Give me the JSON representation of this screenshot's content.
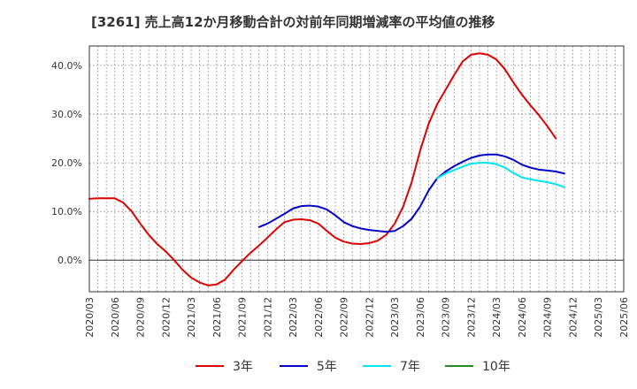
{
  "chart_data": {
    "type": "line",
    "title": "[3261]  売上高12か月移動合計の対前年同期増減率の平均値の推移",
    "xlabel": "",
    "ylabel": "",
    "x": [
      "2020/03",
      "2020/06",
      "2020/09",
      "2020/12",
      "2021/03",
      "2021/06",
      "2021/09",
      "2021/12",
      "2022/03",
      "2022/06",
      "2022/09",
      "2022/12",
      "2023/03",
      "2023/06",
      "2023/09",
      "2023/12",
      "2024/03",
      "2024/06",
      "2024/09",
      "2024/12",
      "2025/03",
      "2025/06"
    ],
    "ylim": [
      -6.5,
      44.0
    ],
    "yticks": [
      {
        "value": 0,
        "label": "0.0%"
      },
      {
        "value": 10,
        "label": "10.0%"
      },
      {
        "value": 20,
        "label": "20.0%"
      },
      {
        "value": 30,
        "label": "30.0%"
      },
      {
        "value": 40,
        "label": "40.0%"
      }
    ],
    "grid": true,
    "legend_position": "bottom",
    "series": [
      {
        "name": "3年",
        "color": "#dd0000",
        "points": [
          [
            "2020/03",
            12.6
          ],
          [
            "2020/04",
            12.7
          ],
          [
            "2020/05",
            12.7
          ],
          [
            "2020/06",
            12.7
          ],
          [
            "2020/07",
            11.8
          ],
          [
            "2020/08",
            10.0
          ],
          [
            "2020/09",
            7.5
          ],
          [
            "2020/10",
            5.2
          ],
          [
            "2020/11",
            3.3
          ],
          [
            "2020/12",
            1.8
          ],
          [
            "2021/01",
            0.0
          ],
          [
            "2021/02",
            -2.0
          ],
          [
            "2021/03",
            -3.6
          ],
          [
            "2021/04",
            -4.6
          ],
          [
            "2021/05",
            -5.2
          ],
          [
            "2021/06",
            -5.0
          ],
          [
            "2021/07",
            -4.0
          ],
          [
            "2021/08",
            -2.0
          ],
          [
            "2021/09",
            -0.2
          ],
          [
            "2021/10",
            1.5
          ],
          [
            "2021/11",
            3.0
          ],
          [
            "2021/12",
            4.6
          ],
          [
            "2022/01",
            6.3
          ],
          [
            "2022/02",
            7.8
          ],
          [
            "2022/03",
            8.3
          ],
          [
            "2022/04",
            8.4
          ],
          [
            "2022/05",
            8.2
          ],
          [
            "2022/06",
            7.5
          ],
          [
            "2022/07",
            6.0
          ],
          [
            "2022/08",
            4.6
          ],
          [
            "2022/09",
            3.8
          ],
          [
            "2022/10",
            3.4
          ],
          [
            "2022/11",
            3.3
          ],
          [
            "2022/12",
            3.5
          ],
          [
            "2023/01",
            4.0
          ],
          [
            "2023/02",
            5.2
          ],
          [
            "2023/03",
            7.5
          ],
          [
            "2023/04",
            11.0
          ],
          [
            "2023/05",
            16.0
          ],
          [
            "2023/06",
            22.5
          ],
          [
            "2023/07",
            28.0
          ],
          [
            "2023/08",
            32.0
          ],
          [
            "2023/09",
            35.0
          ],
          [
            "2023/10",
            38.0
          ],
          [
            "2023/11",
            40.8
          ],
          [
            "2023/12",
            42.2
          ],
          [
            "2024/01",
            42.5
          ],
          [
            "2024/02",
            42.2
          ],
          [
            "2024/03",
            41.2
          ],
          [
            "2024/04",
            39.2
          ],
          [
            "2024/05",
            36.5
          ],
          [
            "2024/06",
            34.0
          ],
          [
            "2024/07",
            31.8
          ],
          [
            "2024/08",
            29.8
          ],
          [
            "2024/09",
            27.5
          ],
          [
            "2024/10",
            25.0
          ]
        ]
      },
      {
        "name": "5年",
        "color": "#0000cc",
        "points": [
          [
            "2021/11",
            6.8
          ],
          [
            "2021/12",
            7.5
          ],
          [
            "2022/01",
            8.5
          ],
          [
            "2022/02",
            9.5
          ],
          [
            "2022/03",
            10.6
          ],
          [
            "2022/04",
            11.1
          ],
          [
            "2022/05",
            11.2
          ],
          [
            "2022/06",
            11.0
          ],
          [
            "2022/07",
            10.4
          ],
          [
            "2022/08",
            9.2
          ],
          [
            "2022/09",
            7.8
          ],
          [
            "2022/10",
            7.0
          ],
          [
            "2022/11",
            6.5
          ],
          [
            "2022/12",
            6.2
          ],
          [
            "2023/01",
            6.0
          ],
          [
            "2023/02",
            5.8
          ],
          [
            "2023/03",
            6.0
          ],
          [
            "2023/04",
            7.0
          ],
          [
            "2023/05",
            8.5
          ],
          [
            "2023/06",
            11.0
          ],
          [
            "2023/07",
            14.3
          ],
          [
            "2023/08",
            16.8
          ],
          [
            "2023/09",
            18.2
          ],
          [
            "2023/10",
            19.3
          ],
          [
            "2023/11",
            20.2
          ],
          [
            "2023/12",
            21.0
          ],
          [
            "2024/01",
            21.5
          ],
          [
            "2024/02",
            21.7
          ],
          [
            "2024/03",
            21.7
          ],
          [
            "2024/04",
            21.3
          ],
          [
            "2024/05",
            20.6
          ],
          [
            "2024/06",
            19.6
          ],
          [
            "2024/07",
            19.0
          ],
          [
            "2024/08",
            18.6
          ],
          [
            "2024/09",
            18.4
          ],
          [
            "2024/10",
            18.2
          ],
          [
            "2024/11",
            17.8
          ]
        ]
      },
      {
        "name": "7年",
        "color": "#00e5ee",
        "points": [
          [
            "2023/08",
            16.8
          ],
          [
            "2023/09",
            17.8
          ],
          [
            "2023/10",
            18.5
          ],
          [
            "2023/11",
            19.2
          ],
          [
            "2023/12",
            19.8
          ],
          [
            "2024/01",
            20.0
          ],
          [
            "2024/02",
            20.0
          ],
          [
            "2024/03",
            19.7
          ],
          [
            "2024/04",
            19.0
          ],
          [
            "2024/05",
            17.9
          ],
          [
            "2024/06",
            17.0
          ],
          [
            "2024/07",
            16.6
          ],
          [
            "2024/08",
            16.3
          ],
          [
            "2024/09",
            16.0
          ],
          [
            "2024/10",
            15.6
          ],
          [
            "2024/11",
            15.0
          ]
        ]
      },
      {
        "name": "10年",
        "color": "#228b22",
        "points": []
      }
    ]
  }
}
